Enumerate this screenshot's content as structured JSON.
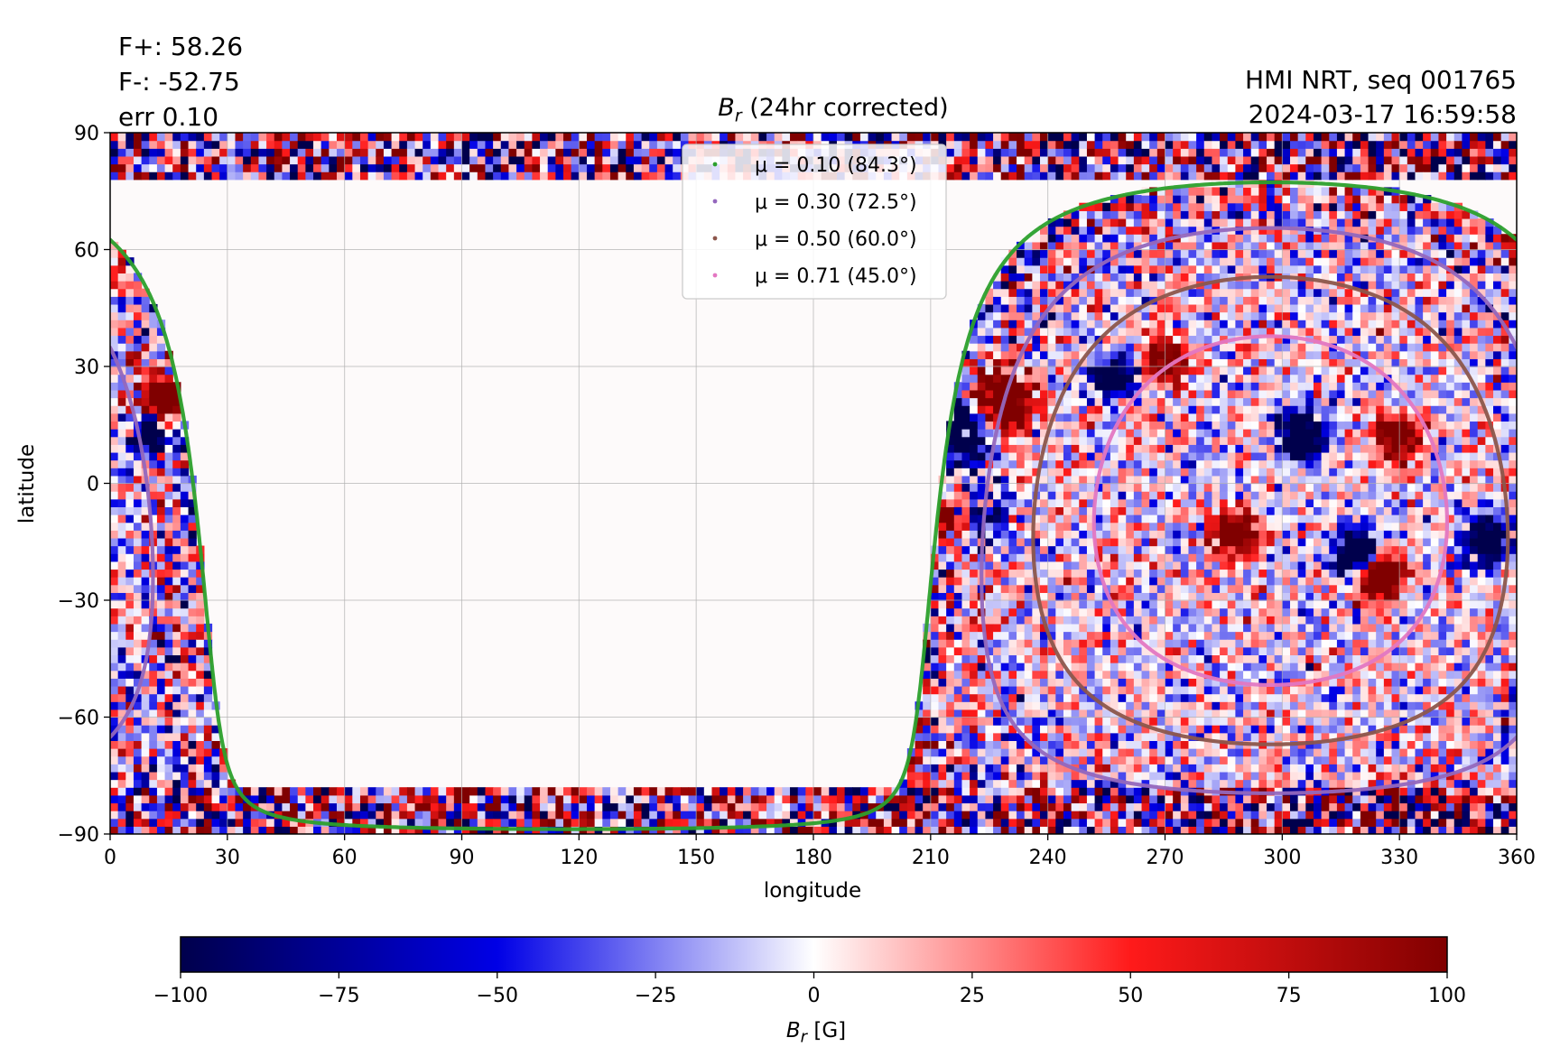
{
  "stats": {
    "f_plus": "F+: 58.26",
    "f_minus": "F-: -52.75",
    "err": "err 0.10"
  },
  "meta": {
    "instrument": "HMI NRT, seq 001765",
    "datetime": "2024-03-17 16:59:58"
  },
  "chart_data": {
    "type": "heatmap",
    "title": "B_r (24hr corrected)",
    "title_symbol": "B",
    "title_sub": "r",
    "title_rest": " (24hr corrected)",
    "xlabel": "longitude",
    "ylabel": "latitude",
    "xlim": [
      0,
      360
    ],
    "ylim": [
      -90,
      90
    ],
    "xticks": [
      0,
      30,
      60,
      90,
      120,
      150,
      180,
      210,
      240,
      270,
      300,
      330,
      360
    ],
    "yticks": [
      90,
      60,
      30,
      0,
      -30,
      -60,
      -90
    ],
    "ytick_labels": [
      "90",
      "60",
      "30",
      "0",
      "−30",
      "−60",
      "−90"
    ],
    "grid": true,
    "colormap": "seismic",
    "colorbar": {
      "label_symbol": "B",
      "label_sub": "r",
      "label_rest": " [G]",
      "ticks": [
        -100,
        -75,
        -50,
        -25,
        0,
        25,
        50,
        75,
        100
      ],
      "tick_labels": [
        "−100",
        "−75",
        "−50",
        "−25",
        "0",
        "25",
        "50",
        "75",
        "100"
      ],
      "range": [
        -100,
        100
      ]
    },
    "disk_center": {
      "lon": 297,
      "lat": -7
    },
    "legend_position": "top-center",
    "series": [
      {
        "name": "μ = 0.10 (84.3°)",
        "mu": 0.1,
        "angle_deg": 84.3,
        "color": "#2ca02c"
      },
      {
        "name": "μ = 0.30 (72.5°)",
        "mu": 0.3,
        "angle_deg": 72.5,
        "color": "#9467bd"
      },
      {
        "name": "μ = 0.50 (60.0°)",
        "mu": 0.5,
        "angle_deg": 60.0,
        "color": "#8c564b"
      },
      {
        "name": "μ = 0.71 (45.0°)",
        "mu": 0.71,
        "angle_deg": 45.0,
        "color": "#e377c2"
      }
    ],
    "active_regions": [
      {
        "lon": 14,
        "lat": 22,
        "sign": 1,
        "strength": 1.0,
        "size": 3
      },
      {
        "lon": 10,
        "lat": 12,
        "sign": -1,
        "strength": 0.8,
        "size": 3
      },
      {
        "lon": 226,
        "lat": 20,
        "sign": 1,
        "strength": 1.0,
        "size": 6
      },
      {
        "lon": 219,
        "lat": 15,
        "sign": -1,
        "strength": 1.0,
        "size": 6
      },
      {
        "lon": 217,
        "lat": -10,
        "sign": 1,
        "strength": 0.9,
        "size": 4
      },
      {
        "lon": 220,
        "lat": -10,
        "sign": -1,
        "strength": 0.9,
        "size": 4
      },
      {
        "lon": 325,
        "lat": -23,
        "sign": 1,
        "strength": 0.9,
        "size": 4
      },
      {
        "lon": 319,
        "lat": -18,
        "sign": -1,
        "strength": 0.9,
        "size": 4
      },
      {
        "lon": 305,
        "lat": 12,
        "sign": -1,
        "strength": 0.8,
        "size": 4
      },
      {
        "lon": 330,
        "lat": 12,
        "sign": 1,
        "strength": 0.7,
        "size": 4
      },
      {
        "lon": 288,
        "lat": -12,
        "sign": 1,
        "strength": 0.6,
        "size": 4
      },
      {
        "lon": 352,
        "lat": -15,
        "sign": -1,
        "strength": 0.7,
        "size": 4
      },
      {
        "lon": 270,
        "lat": 32,
        "sign": 1,
        "strength": 0.6,
        "size": 4
      },
      {
        "lon": 257,
        "lat": 28,
        "sign": -1,
        "strength": 0.6,
        "size": 4
      }
    ]
  }
}
